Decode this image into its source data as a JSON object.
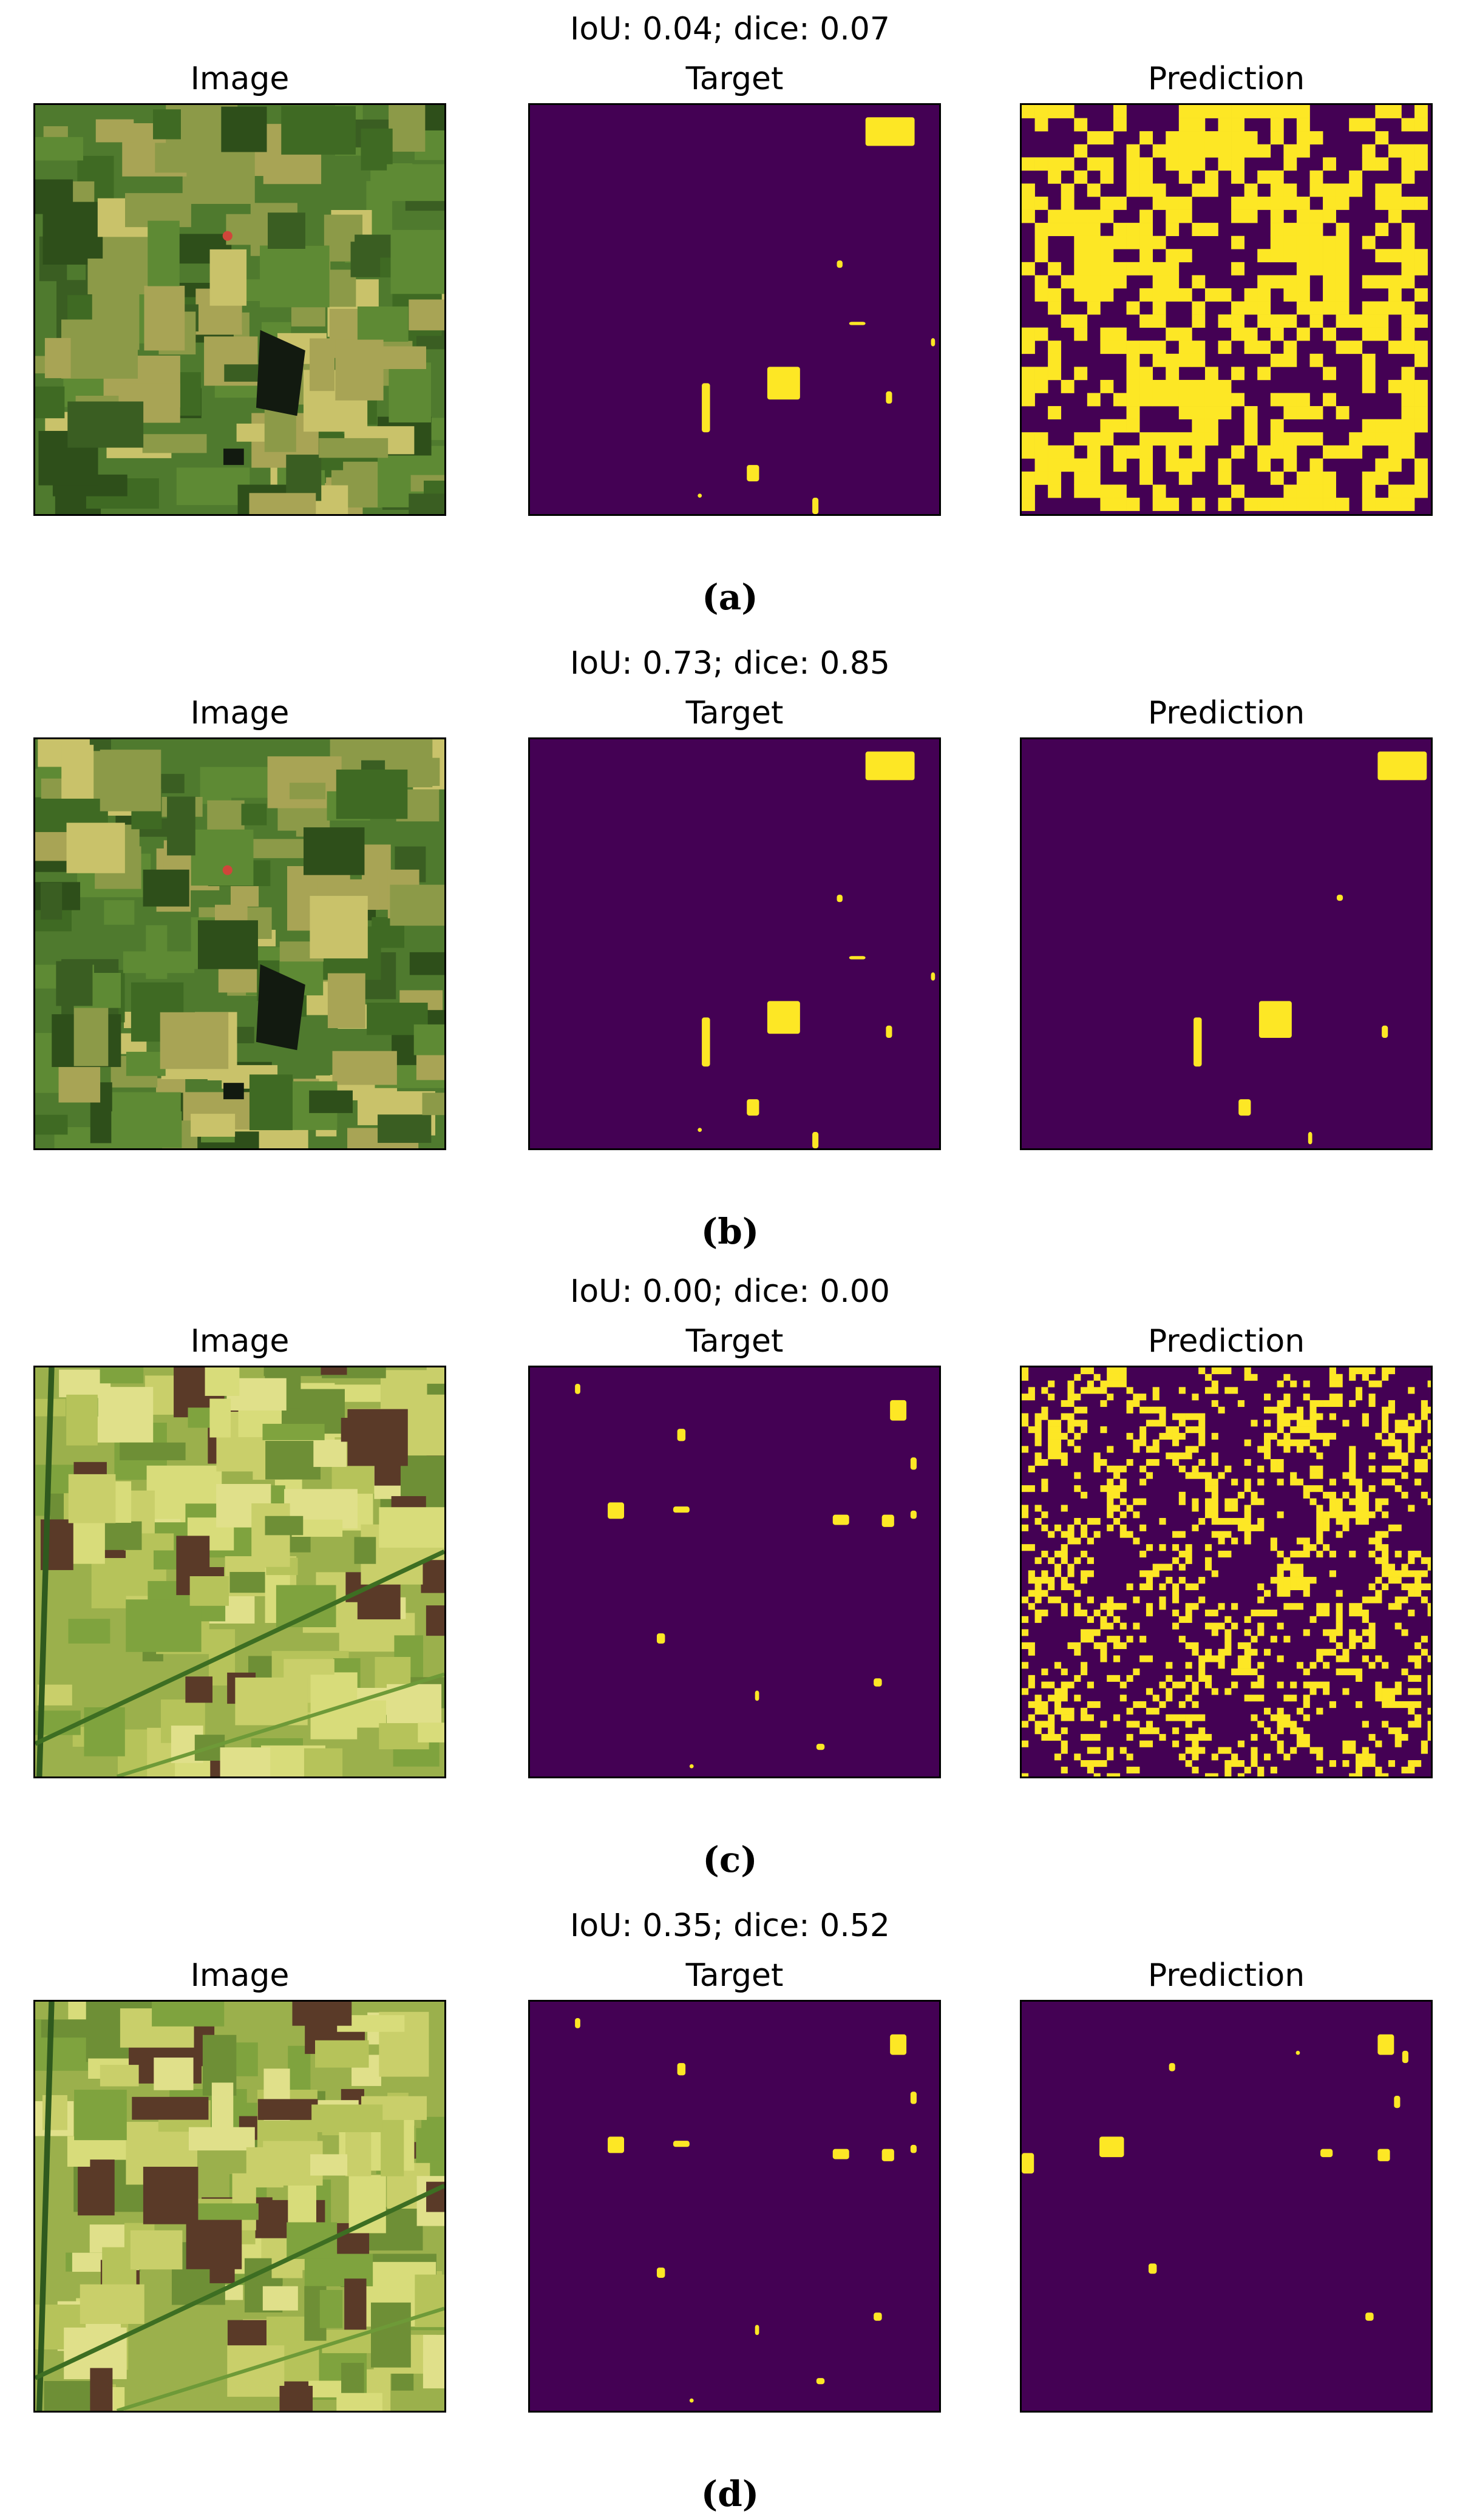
{
  "colors": {
    "mask_bg": "#440154",
    "mask_fg": "#fde725",
    "field_dark": "#3f6a23",
    "field_light": "#c9c26a",
    "field_brown": "#5a3a28"
  },
  "figure": {
    "column_titles": [
      "Image",
      "Target",
      "Prediction"
    ],
    "rows": [
      {
        "metric": "IoU: 0.04; dice: 0.07",
        "caption": "(a)"
      },
      {
        "metric": "IoU: 0.73; dice: 0.85",
        "caption": "(b)"
      },
      {
        "metric": "IoU: 0.00; dice: 0.00",
        "caption": "(c)"
      },
      {
        "metric": "IoU: 0.35; dice: 0.52",
        "caption": "(d)"
      }
    ]
  }
}
